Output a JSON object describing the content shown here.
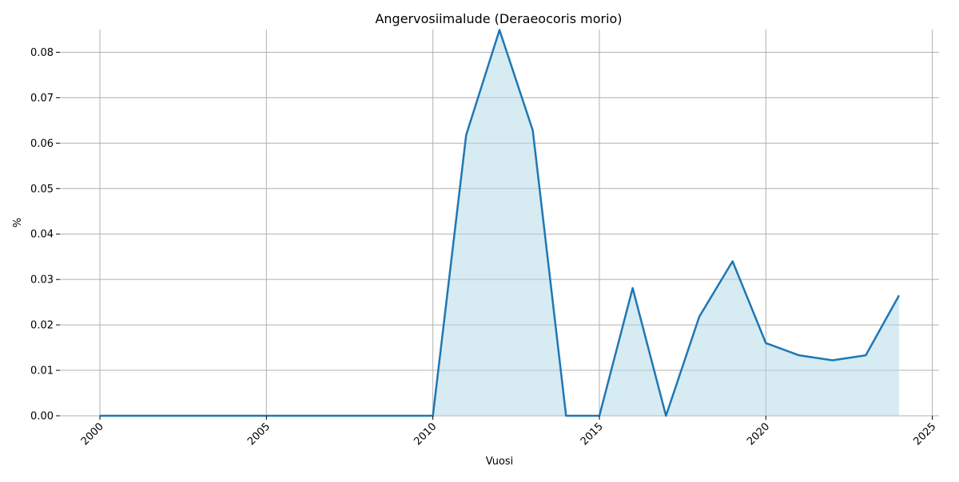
{
  "chart_data": {
    "type": "area",
    "title": "Angervosiimalude (Deraeocoris morio)",
    "xlabel": "Vuosi",
    "ylabel": "%",
    "xlim": [
      1998.8,
      2025.2
    ],
    "ylim": [
      0,
      0.085
    ],
    "xticks": [
      2000,
      2005,
      2010,
      2015,
      2020,
      2025
    ],
    "yticks": [
      0.0,
      0.01,
      0.02,
      0.03,
      0.04,
      0.05,
      0.06,
      0.07,
      0.08
    ],
    "ytick_labels": [
      "0.00",
      "0.01",
      "0.02",
      "0.03",
      "0.04",
      "0.05",
      "0.06",
      "0.07",
      "0.08"
    ],
    "grid": true,
    "line_color": "#1f77b4",
    "fill_color": "#add8e6",
    "x": [
      2000,
      2001,
      2002,
      2003,
      2004,
      2005,
      2006,
      2007,
      2008,
      2009,
      2010,
      2011,
      2012,
      2013,
      2014,
      2015,
      2016,
      2017,
      2018,
      2019,
      2020,
      2021,
      2022,
      2023,
      2024
    ],
    "values": [
      0,
      0,
      0,
      0,
      0,
      0,
      0,
      0,
      0,
      0,
      0,
      0.0618,
      0.0849,
      0.0628,
      0,
      0,
      0.0281,
      0,
      0.0218,
      0.034,
      0.016,
      0.0133,
      0.0122,
      0.0133,
      0.0265
    ]
  }
}
